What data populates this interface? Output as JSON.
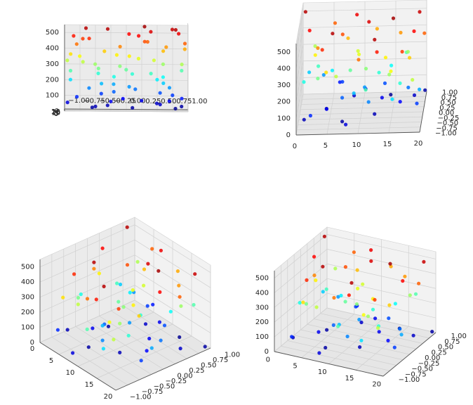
{
  "figure": {
    "layout": "2x2 grid of 3D scatter views of the same data"
  },
  "colormap": {
    "name": "jet",
    "stops": [
      "#00007f",
      "#0000ff",
      "#007fff",
      "#00ffff",
      "#7fff7f",
      "#ffff00",
      "#ff7f00",
      "#ff0000",
      "#7f0000"
    ]
  },
  "style": {
    "pane_color": "#f2f2f2",
    "grid_color": "#d0d0d0",
    "axis_color": "#555555",
    "text_color": "#222222"
  },
  "chart_data": [
    {
      "type": "scatter3d",
      "title": "",
      "view": "top-left",
      "x_ticks": [
        "0",
        "5",
        "10",
        "15",
        "20"
      ],
      "y_ticks": [
        "1.00",
        "0.75",
        "0.50",
        "0.25",
        "0.00",
        "−0.25",
        "−0.50",
        "−0.75",
        "−1.00"
      ],
      "z_ticks": [
        "0",
        "100",
        "200",
        "300",
        "400",
        "500"
      ],
      "xlim": [
        0,
        20
      ],
      "ylim": [
        -1,
        1
      ],
      "zlim": [
        0,
        550
      ]
    },
    {
      "type": "scatter3d",
      "title": "",
      "view": "top-right",
      "x_ticks": [
        "0",
        "5",
        "10",
        "15",
        "20"
      ],
      "y_ticks": [
        "−1.00",
        "−0.75",
        "−0.50",
        "−0.25",
        "0.00",
        "0.25",
        "0.50",
        "0.75",
        "1.00"
      ],
      "z_ticks": [
        "0",
        "100",
        "200",
        "300",
        "400",
        "500"
      ],
      "xlim": [
        0,
        20
      ],
      "ylim": [
        -1,
        1
      ],
      "zlim": [
        0,
        550
      ]
    },
    {
      "type": "scatter3d",
      "title": "",
      "view": "bottom-left",
      "x_ticks": [
        "0",
        "5",
        "10",
        "15",
        "20"
      ],
      "y_ticks": [
        "1.00",
        "0.75",
        "0.50",
        "0.25",
        "0.00",
        "−0.25",
        "−0.50",
        "−0.75",
        "−1.00"
      ],
      "z_ticks": [
        "0",
        "100",
        "200",
        "300",
        "400",
        "500"
      ],
      "xlim": [
        0,
        20
      ],
      "ylim": [
        -1,
        1
      ],
      "zlim": [
        0,
        550
      ]
    },
    {
      "type": "scatter3d",
      "title": "",
      "view": "bottom-right",
      "x_ticks": [
        "0",
        "5",
        "10",
        "15",
        "20"
      ],
      "y_ticks": [
        "1.00",
        "0.75",
        "0.50",
        "0.25",
        "0.00",
        "−0.25",
        "−0.50",
        "−0.75",
        "−1.00"
      ],
      "z_ticks": [
        "0",
        "100",
        "200",
        "300",
        "400",
        "500"
      ],
      "xlim": [
        0,
        20
      ],
      "ylim": [
        -1,
        1
      ],
      "zlim": [
        0,
        550
      ]
    }
  ],
  "points": [
    [
      0.5,
      0.8,
      520
    ],
    [
      1.0,
      -0.5,
      30
    ],
    [
      1.5,
      0.2,
      480
    ],
    [
      2.0,
      0.9,
      300
    ],
    [
      2.2,
      -0.8,
      90
    ],
    [
      2.8,
      0.4,
      240
    ],
    [
      3.0,
      -0.1,
      410
    ],
    [
      3.5,
      0.7,
      150
    ],
    [
      4.0,
      -0.6,
      460
    ],
    [
      4.3,
      0.1,
      20
    ],
    [
      4.8,
      -0.9,
      360
    ],
    [
      5.0,
      0.5,
      200
    ],
    [
      5.5,
      -0.3,
      520
    ],
    [
      6.0,
      0.9,
      80
    ],
    [
      6.3,
      -0.7,
      310
    ],
    [
      6.8,
      0.3,
      440
    ],
    [
      7.0,
      -0.2,
      120
    ],
    [
      7.5,
      0.6,
      380
    ],
    [
      8.0,
      -0.95,
      50
    ],
    [
      8.2,
      0.0,
      260
    ],
    [
      8.8,
      0.85,
      490
    ],
    [
      9.0,
      -0.4,
      170
    ],
    [
      9.5,
      0.2,
      330
    ],
    [
      10.0,
      -0.8,
      420
    ],
    [
      10.3,
      0.7,
      60
    ],
    [
      10.8,
      -0.1,
      280
    ],
    [
      11.0,
      0.4,
      500
    ],
    [
      11.5,
      -0.6,
      140
    ],
    [
      12.0,
      0.95,
      390
    ],
    [
      12.3,
      -0.3,
      30
    ],
    [
      12.8,
      0.1,
      230
    ],
    [
      13.0,
      -0.85,
      470
    ],
    [
      13.5,
      0.55,
      110
    ],
    [
      14.0,
      -0.15,
      350
    ],
    [
      14.3,
      0.8,
      10
    ],
    [
      14.8,
      -0.5,
      290
    ],
    [
      15.0,
      0.3,
      530
    ],
    [
      15.5,
      -0.9,
      190
    ],
    [
      16.0,
      0.65,
      400
    ],
    [
      16.3,
      -0.05,
      70
    ],
    [
      16.8,
      0.9,
      250
    ],
    [
      17.0,
      -0.7,
      450
    ],
    [
      17.5,
      0.15,
      130
    ],
    [
      18.0,
      -0.35,
      370
    ],
    [
      18.3,
      0.5,
      40
    ],
    [
      18.8,
      -0.95,
      310
    ],
    [
      19.0,
      0.75,
      510
    ],
    [
      19.5,
      -0.2,
      160
    ],
    [
      20.0,
      0.35,
      430
    ],
    [
      1.2,
      0.6,
      180
    ],
    [
      3.2,
      -0.45,
      270
    ],
    [
      5.2,
      0.95,
      430
    ],
    [
      7.2,
      -0.55,
      20
    ],
    [
      9.2,
      0.45,
      320
    ],
    [
      11.2,
      -0.9,
      250
    ],
    [
      13.2,
      0.25,
      60
    ],
    [
      15.2,
      -0.75,
      340
    ],
    [
      17.2,
      0.6,
      290
    ],
    [
      19.2,
      -0.4,
      100
    ],
    [
      2.5,
      0.05,
      350
    ],
    [
      6.5,
      0.75,
      100
    ],
    [
      10.5,
      0.05,
      150
    ],
    [
      14.5,
      0.6,
      210
    ],
    [
      18.5,
      0.05,
      480
    ],
    [
      4.5,
      -0.25,
      60
    ],
    [
      8.5,
      0.55,
      40
    ],
    [
      12.5,
      -0.65,
      520
    ],
    [
      16.5,
      -0.45,
      230
    ],
    [
      0.8,
      -0.2,
      220
    ],
    [
      19.8,
      0.9,
      20
    ]
  ]
}
